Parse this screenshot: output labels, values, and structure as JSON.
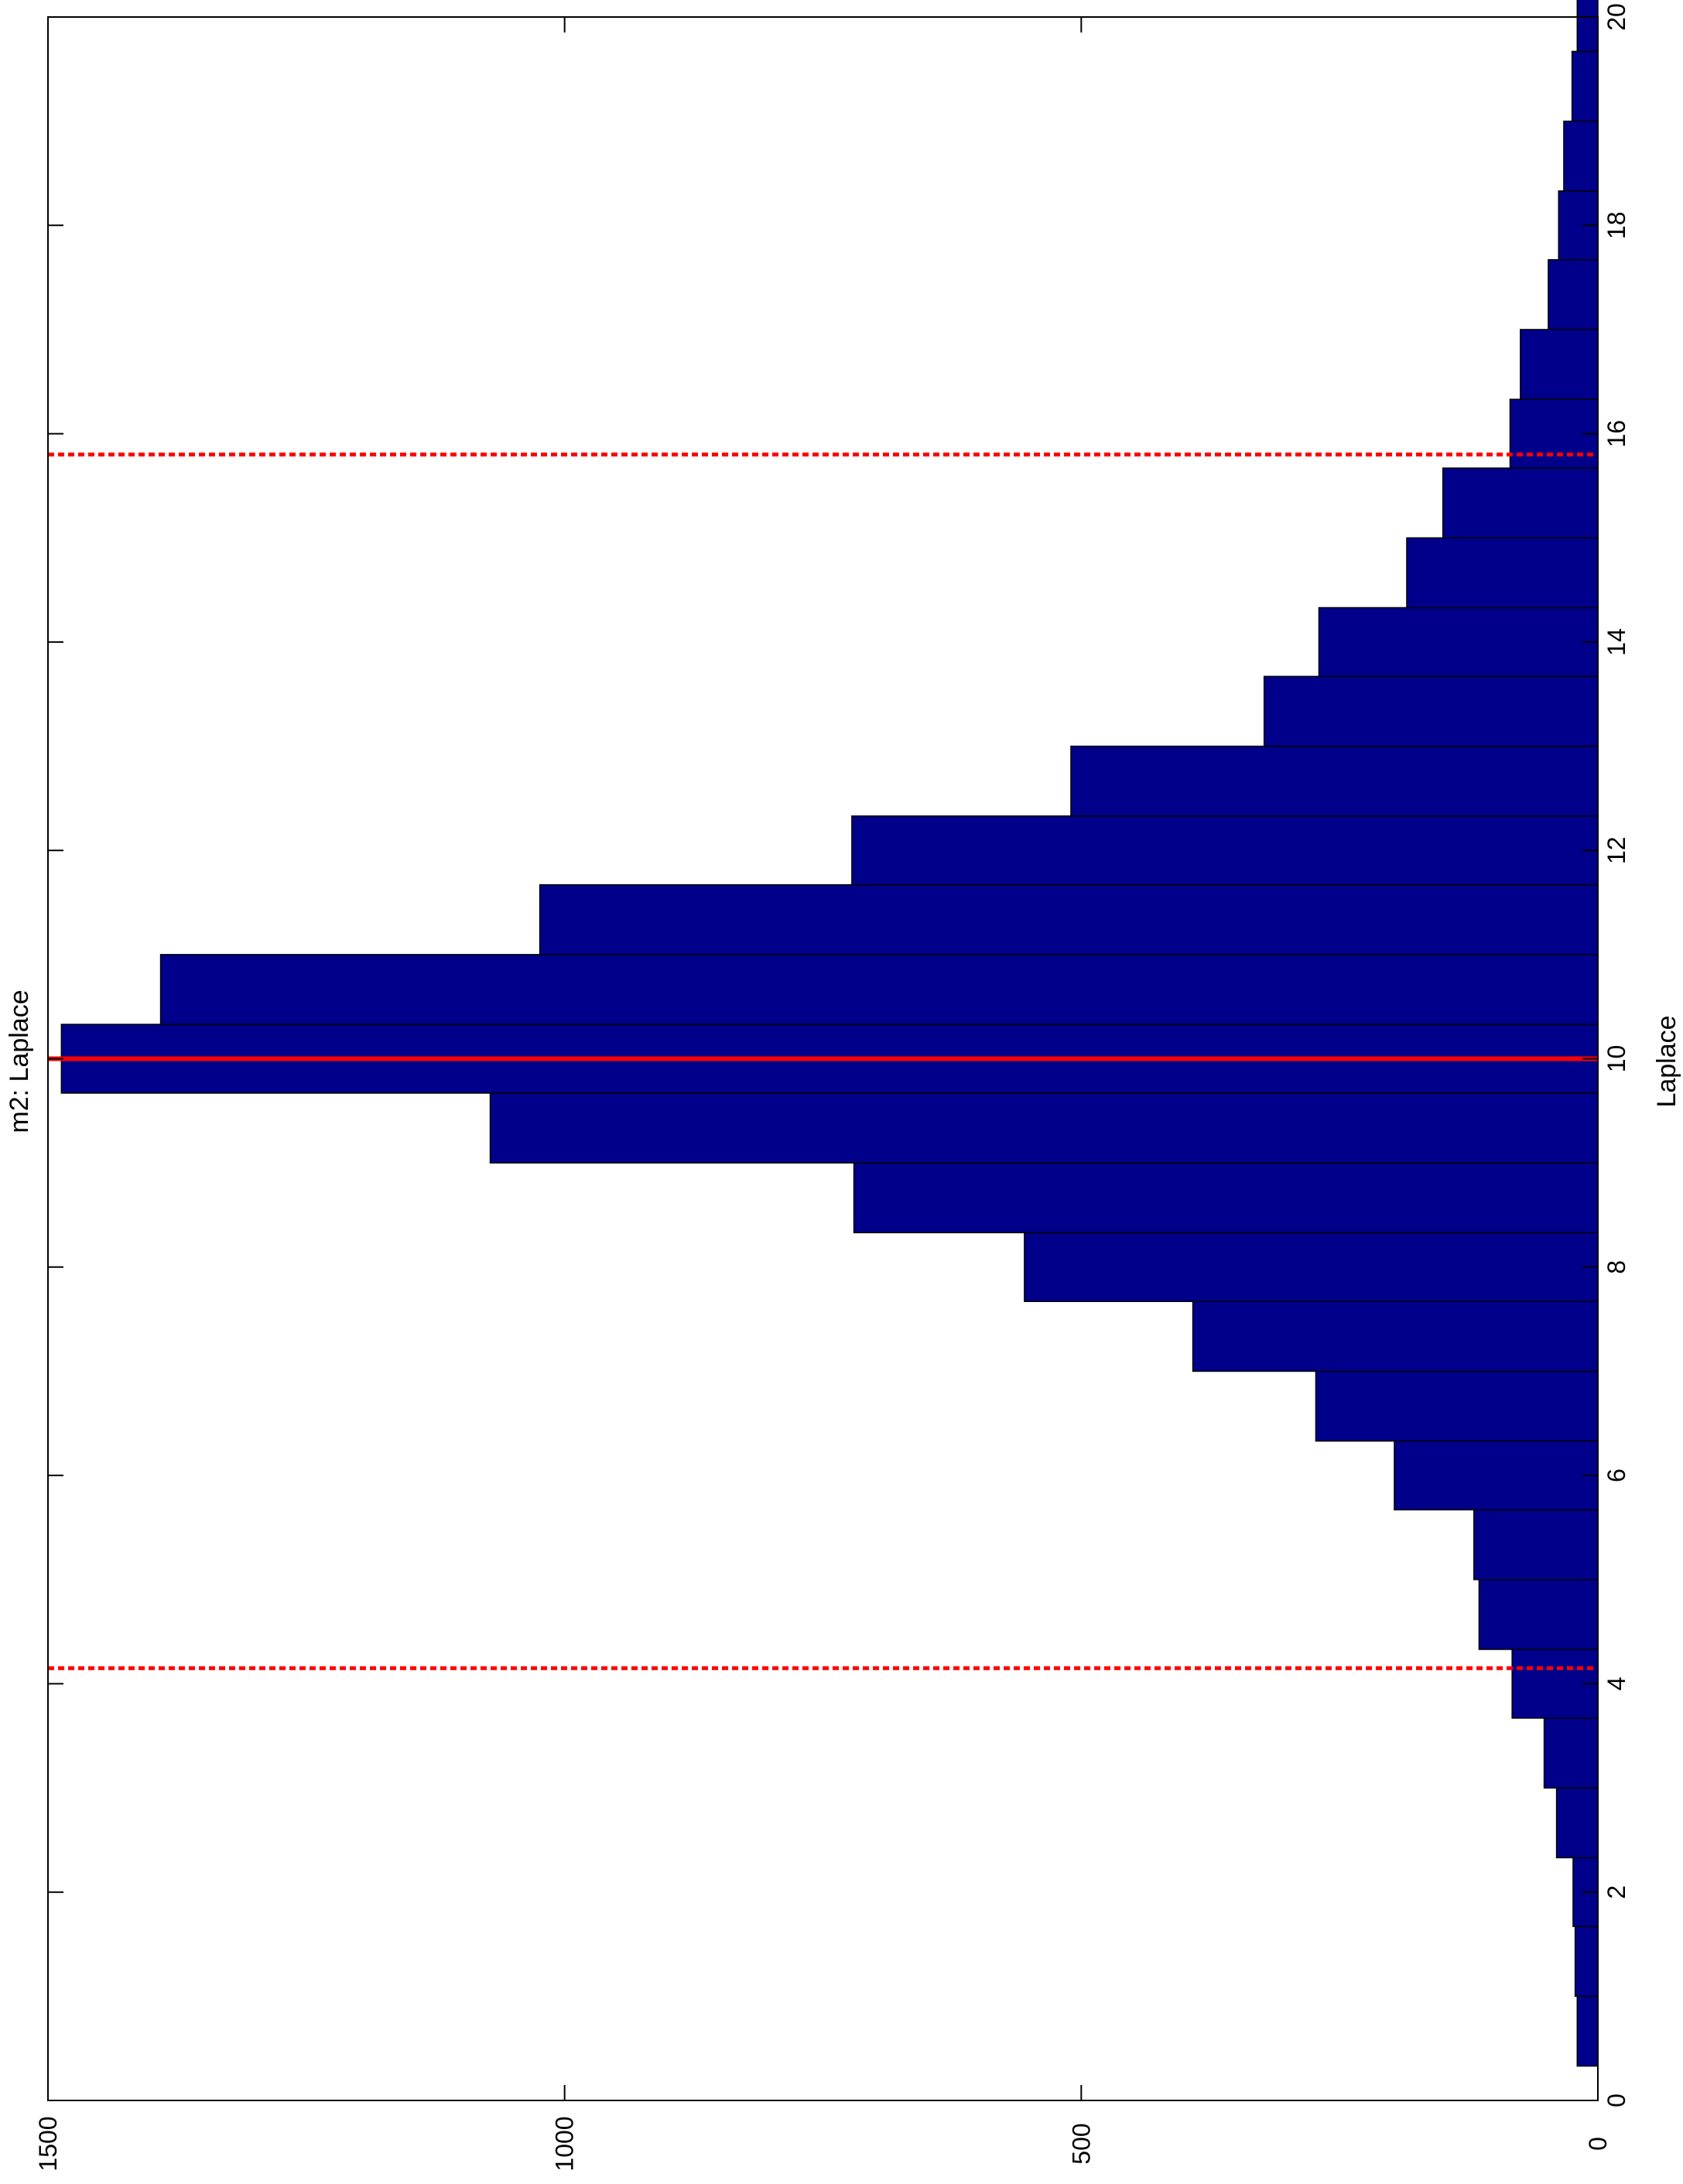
{
  "chart_data": {
    "type": "bar",
    "orientation": "rotated-90",
    "title": "m2: Laplace",
    "xlabel": "Laplace",
    "ylabel": "",
    "xlim": [
      0,
      20
    ],
    "ylim": [
      0,
      1500
    ],
    "x_ticks": [
      "0",
      "2",
      "4",
      "6",
      "8",
      "10",
      "12",
      "14",
      "16",
      "18",
      "20"
    ],
    "y_ticks": [
      "0",
      "500",
      "1000",
      "1500"
    ],
    "bin_edges": [
      0.33,
      1.0,
      1.67,
      2.33,
      3.0,
      3.67,
      4.33,
      5.0,
      5.67,
      6.33,
      7.0,
      7.67,
      8.33,
      9.0,
      9.67,
      10.33,
      11.0,
      11.67,
      12.33,
      13.0,
      13.67,
      14.33,
      15.0,
      15.67,
      16.33,
      17.0,
      17.67,
      18.33,
      19.0,
      19.67
    ],
    "counts": [
      20,
      22,
      24,
      40,
      52,
      83,
      115,
      120,
      197,
      273,
      392,
      555,
      720,
      1072,
      1487,
      1391,
      1024,
      722,
      510,
      323,
      270,
      185,
      150,
      85,
      75,
      48,
      38,
      33,
      25,
      20
    ],
    "bar_color": "#00008B",
    "reference_lines": [
      {
        "x": 10.0,
        "style": "solid",
        "color": "#FF0000"
      },
      {
        "x": 4.15,
        "style": "dotted",
        "color": "#FF0000"
      },
      {
        "x": 15.8,
        "style": "dotted",
        "color": "#FF0000"
      }
    ],
    "grid": false
  }
}
